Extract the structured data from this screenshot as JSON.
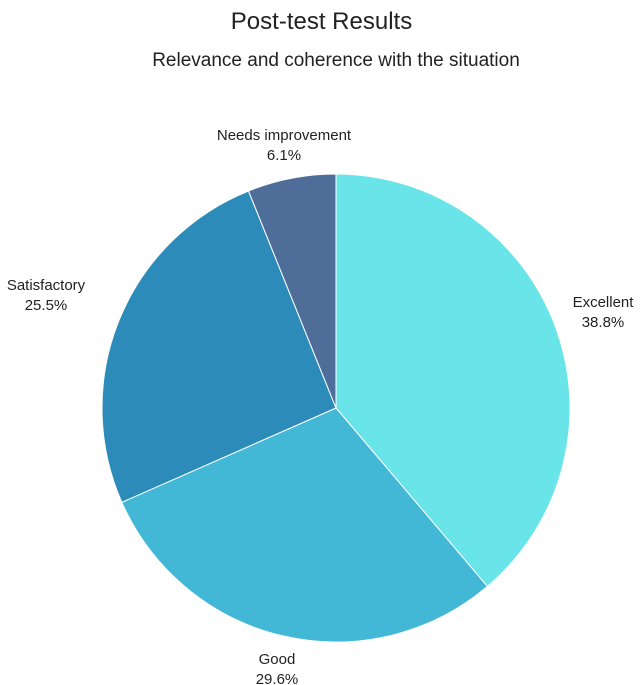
{
  "chart_data": {
    "type": "pie",
    "title": "Post-test Results",
    "subtitle": "Relevance and coherence with the situation",
    "value_suffix": "%",
    "slices": [
      {
        "label": "Excellent",
        "value": 38.8,
        "color": "#69e4e8"
      },
      {
        "label": "Good",
        "value": 29.6,
        "color": "#42b8d6"
      },
      {
        "label": "Satisfactory",
        "value": 25.5,
        "color": "#2d8bba"
      },
      {
        "label": "Needs improvement",
        "value": 6.1,
        "color": "#4e6e99"
      }
    ]
  }
}
